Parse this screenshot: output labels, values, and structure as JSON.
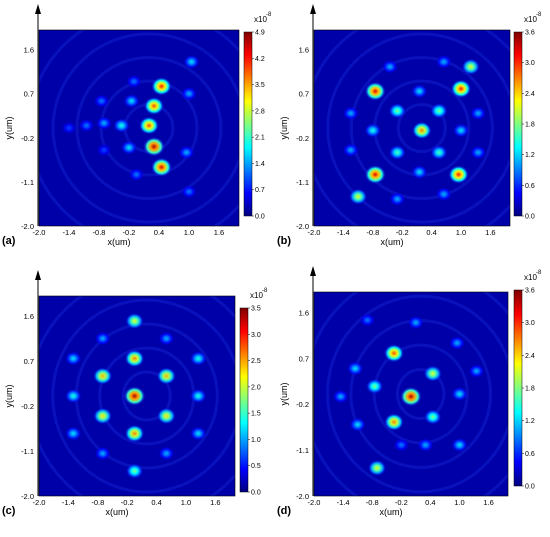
{
  "colormap": [
    "#00007f",
    "#0000ff",
    "#007fff",
    "#00ffff",
    "#7fff7f",
    "#ffff00",
    "#ff7f00",
    "#ff0000",
    "#7f0000"
  ],
  "chart_data": [
    {
      "id": "a",
      "type": "heatmap",
      "panel_label": "(a)",
      "xlabel": "x(um)",
      "ylabel": "y(um)",
      "xlim": [
        -2.0,
        2.0
      ],
      "ylim": [
        -2.0,
        2.0
      ],
      "xticks": [
        "-2.0",
        "-1.4",
        "-0.8",
        "-0.2",
        "0.4",
        "1.0",
        "1.6"
      ],
      "yticks": [
        "1.6",
        "0.7",
        "-0.2",
        "-1.1",
        "-2.0"
      ],
      "colorbar": {
        "exponent": "x10",
        "power": "-8",
        "min": 0.0,
        "max": 4.9,
        "ticks": [
          "4.9",
          "4.2",
          "3.5",
          "2.8",
          "2.1",
          "1.4",
          "0.7",
          "0.0"
        ]
      },
      "spots": [
        {
          "x": 0.45,
          "y": 0.85,
          "v": 0.85
        },
        {
          "x": 0.3,
          "y": 0.45,
          "v": 0.8
        },
        {
          "x": 0.2,
          "y": 0.05,
          "v": 0.8
        },
        {
          "x": 0.3,
          "y": -0.38,
          "v": 0.95
        },
        {
          "x": 0.45,
          "y": -0.8,
          "v": 0.9
        },
        {
          "x": -0.15,
          "y": 0.55,
          "v": 0.35
        },
        {
          "x": -0.35,
          "y": 0.05,
          "v": 0.4
        },
        {
          "x": -0.2,
          "y": -0.4,
          "v": 0.35
        },
        {
          "x": -0.7,
          "y": 0.1,
          "v": 0.3
        },
        {
          "x": -1.05,
          "y": 0.05,
          "v": 0.25
        },
        {
          "x": -1.4,
          "y": 0.0,
          "v": 0.2
        },
        {
          "x": -0.75,
          "y": 0.55,
          "v": 0.25
        },
        {
          "x": -0.7,
          "y": -0.45,
          "v": 0.2
        },
        {
          "x": 1.05,
          "y": 1.35,
          "v": 0.35
        },
        {
          "x": 1.0,
          "y": 0.7,
          "v": 0.3
        },
        {
          "x": 0.95,
          "y": -0.5,
          "v": 0.3
        },
        {
          "x": 1.0,
          "y": -1.3,
          "v": 0.25
        },
        {
          "x": -0.1,
          "y": 0.95,
          "v": 0.25
        },
        {
          "x": -0.05,
          "y": -0.95,
          "v": 0.25
        }
      ]
    },
    {
      "id": "b",
      "type": "heatmap",
      "panel_label": "(b)",
      "xlabel": "x(um)",
      "ylabel": "y(um)",
      "xlim": [
        -2.0,
        2.0
      ],
      "ylim": [
        -2.0,
        2.0
      ],
      "xticks": [
        "-2.0",
        "-1.4",
        "-0.8",
        "-0.2",
        "0.4",
        "1.0",
        "1.6"
      ],
      "yticks": [
        "1.6",
        "0.7",
        "-0.2",
        "-1.1",
        "-2.0"
      ],
      "colorbar": {
        "exponent": "x10",
        "power": "-8",
        "min": 0.0,
        "max": 3.6,
        "ticks": [
          "3.6",
          "3.0",
          "2.4",
          "1.8",
          "1.2",
          "0.6",
          "0.0"
        ]
      },
      "spots": [
        {
          "x": -0.75,
          "y": 0.75,
          "v": 0.9
        },
        {
          "x": 1.0,
          "y": 0.8,
          "v": 0.85
        },
        {
          "x": -0.75,
          "y": -0.95,
          "v": 0.9
        },
        {
          "x": 0.95,
          "y": -0.95,
          "v": 0.85
        },
        {
          "x": 0.2,
          "y": -0.05,
          "v": 0.75
        },
        {
          "x": -0.3,
          "y": 0.35,
          "v": 0.5
        },
        {
          "x": 0.55,
          "y": 0.35,
          "v": 0.5
        },
        {
          "x": -0.3,
          "y": -0.5,
          "v": 0.45
        },
        {
          "x": 0.55,
          "y": -0.5,
          "v": 0.45
        },
        {
          "x": -1.1,
          "y": -1.4,
          "v": 0.6
        },
        {
          "x": 1.2,
          "y": 1.25,
          "v": 0.6
        },
        {
          "x": -0.8,
          "y": -0.05,
          "v": 0.4
        },
        {
          "x": 1.0,
          "y": -0.05,
          "v": 0.35
        },
        {
          "x": 0.15,
          "y": 0.75,
          "v": 0.35
        },
        {
          "x": 0.15,
          "y": -0.9,
          "v": 0.35
        },
        {
          "x": -1.25,
          "y": 0.3,
          "v": 0.3
        },
        {
          "x": -1.25,
          "y": -0.45,
          "v": 0.3
        },
        {
          "x": 1.35,
          "y": 0.3,
          "v": 0.3
        },
        {
          "x": 1.35,
          "y": -0.5,
          "v": 0.3
        },
        {
          "x": -0.45,
          "y": 1.25,
          "v": 0.3
        },
        {
          "x": 0.65,
          "y": 1.35,
          "v": 0.3
        },
        {
          "x": 0.65,
          "y": -1.35,
          "v": 0.3
        },
        {
          "x": -0.3,
          "y": -1.45,
          "v": 0.3
        }
      ]
    },
    {
      "id": "c",
      "type": "heatmap",
      "panel_label": "(c)",
      "xlabel": "x(um)",
      "ylabel": "y(um)",
      "xlim": [
        -2.0,
        2.0
      ],
      "ylim": [
        -2.0,
        2.0
      ],
      "xticks": [
        "-2.0",
        "-1.4",
        "-0.8",
        "-0.2",
        "0.4",
        "1.0",
        "1.6"
      ],
      "yticks": [
        "1.6",
        "0.7",
        "-0.2",
        "-1.1",
        "-2.0"
      ],
      "colorbar": {
        "exponent": "x10",
        "power": "-8",
        "min": 0.0,
        "max": 3.5,
        "ticks": [
          "3.5",
          "3.0",
          "2.5",
          "2.0",
          "1.5",
          "1.0",
          "0.5",
          "0.0"
        ]
      },
      "spots": [
        {
          "x": -0.05,
          "y": 0.0,
          "v": 0.95
        },
        {
          "x": -0.05,
          "y": 0.75,
          "v": 0.75
        },
        {
          "x": -0.05,
          "y": -0.75,
          "v": 0.75
        },
        {
          "x": -0.7,
          "y": 0.4,
          "v": 0.7
        },
        {
          "x": 0.6,
          "y": 0.4,
          "v": 0.7
        },
        {
          "x": -0.7,
          "y": -0.4,
          "v": 0.65
        },
        {
          "x": 0.6,
          "y": -0.4,
          "v": 0.65
        },
        {
          "x": -0.05,
          "y": 1.5,
          "v": 0.6
        },
        {
          "x": -0.05,
          "y": -1.5,
          "v": 0.5
        },
        {
          "x": -1.3,
          "y": 0.0,
          "v": 0.4
        },
        {
          "x": 1.25,
          "y": 0.0,
          "v": 0.4
        },
        {
          "x": -1.3,
          "y": 0.75,
          "v": 0.35
        },
        {
          "x": 1.25,
          "y": 0.75,
          "v": 0.4
        },
        {
          "x": -1.3,
          "y": -0.75,
          "v": 0.35
        },
        {
          "x": 1.25,
          "y": -0.75,
          "v": 0.35
        },
        {
          "x": -0.7,
          "y": 1.15,
          "v": 0.3
        },
        {
          "x": 0.6,
          "y": 1.15,
          "v": 0.3
        },
        {
          "x": -0.7,
          "y": -1.15,
          "v": 0.3
        },
        {
          "x": 0.6,
          "y": -1.15,
          "v": 0.3
        }
      ]
    },
    {
      "id": "d",
      "type": "heatmap",
      "panel_label": "(d)",
      "xlabel": "x(um)",
      "ylabel": "y(um)",
      "xlim": [
        -2.0,
        2.0
      ],
      "ylim": [
        -2.0,
        2.0
      ],
      "xticks": [
        "-2.0",
        "-1.4",
        "-0.8",
        "-0.2",
        "0.4",
        "1.0",
        "1.6"
      ],
      "yticks": [
        "1.6",
        "0.7",
        "-0.2",
        "-1.1",
        "-2.0"
      ],
      "colorbar": {
        "exponent": "x10",
        "power": "-8",
        "min": 0.0,
        "max": 3.6,
        "ticks": [
          "3.6",
          "3.0",
          "2.4",
          "1.8",
          "1.2",
          "0.6",
          "0.0"
        ]
      },
      "spots": [
        {
          "x": 0.0,
          "y": -0.05,
          "v": 0.95
        },
        {
          "x": -0.35,
          "y": 0.8,
          "v": 0.8
        },
        {
          "x": -0.35,
          "y": -0.55,
          "v": 0.75
        },
        {
          "x": 0.45,
          "y": 0.4,
          "v": 0.6
        },
        {
          "x": 0.45,
          "y": -0.45,
          "v": 0.5
        },
        {
          "x": -0.75,
          "y": 0.15,
          "v": 0.5
        },
        {
          "x": -0.7,
          "y": -1.45,
          "v": 0.6
        },
        {
          "x": -1.15,
          "y": 0.5,
          "v": 0.35
        },
        {
          "x": -1.1,
          "y": -0.6,
          "v": 0.35
        },
        {
          "x": 1.0,
          "y": 0.0,
          "v": 0.35
        },
        {
          "x": 1.0,
          "y": -1.0,
          "v": 0.35
        },
        {
          "x": 0.95,
          "y": 1.0,
          "v": 0.3
        },
        {
          "x": 0.1,
          "y": 1.4,
          "v": 0.3
        },
        {
          "x": -1.45,
          "y": -0.05,
          "v": 0.3
        },
        {
          "x": 0.3,
          "y": -1.0,
          "v": 0.3
        },
        {
          "x": -0.2,
          "y": -1.0,
          "v": 0.25
        },
        {
          "x": 1.35,
          "y": 0.45,
          "v": 0.3
        },
        {
          "x": -0.9,
          "y": 1.45,
          "v": 0.25
        }
      ]
    }
  ]
}
